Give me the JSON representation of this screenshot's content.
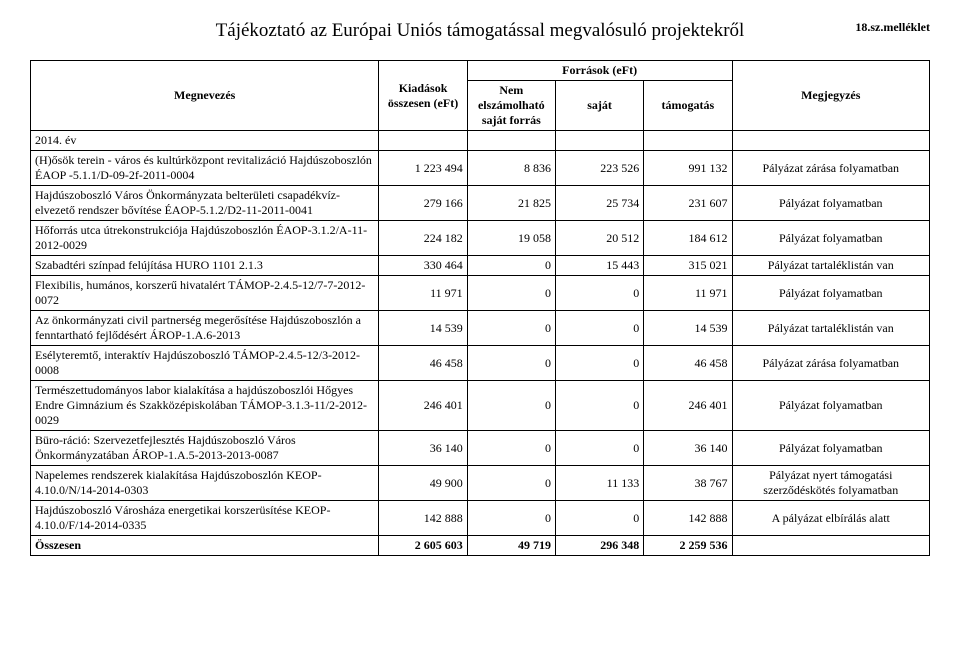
{
  "header": {
    "title": "Tájékoztató az Európai Uniós támogatással megvalósuló projektekről",
    "annex": "18.sz.melléklet"
  },
  "table": {
    "columns": {
      "name": "Megnevezés",
      "kiadasok": "Kiadások összesen (eFt)",
      "forrasok": "Források (eFt)",
      "nem": "Nem elszámolható saját forrás",
      "sajat": "saját",
      "tamogatas": "támogatás",
      "megjegyzes": "Megjegyzés"
    },
    "year": "2014. év",
    "rows": [
      {
        "name": "(H)ősök terein - város és kultúrközpont revitalizáció Hajdúszoboszlón ÉAOP -5.1.1/D-09-2f-2011-0004",
        "c1": "1 223 494",
        "c2": "8 836",
        "c3": "223 526",
        "c4": "991 132",
        "note": "Pályázat zárása folyamatban"
      },
      {
        "name": "Hajdúszoboszló Város Önkormányzata belterületi csapadékvíz-elvezető rendszer bővítése ÉAOP-5.1.2/D2-11-2011-0041",
        "c1": "279 166",
        "c2": "21 825",
        "c3": "25 734",
        "c4": "231 607",
        "note": "Pályázat folyamatban"
      },
      {
        "name": "Hőforrás utca útrekonstrukciója Hajdúszoboszlón ÉAOP-3.1.2/A-11-2012-0029",
        "c1": "224 182",
        "c2": "19 058",
        "c3": "20 512",
        "c4": "184 612",
        "note": "Pályázat folyamatban"
      },
      {
        "name": "Szabadtéri színpad felújítása HURO 1101 2.1.3",
        "c1": "330 464",
        "c2": "0",
        "c3": "15 443",
        "c4": "315 021",
        "note": "Pályázat tartaléklistán van"
      },
      {
        "name": "Flexibilis, humános, korszerű hivatalért TÁMOP-2.4.5-12/7-7-2012-0072",
        "c1": "11 971",
        "c2": "0",
        "c3": "0",
        "c4": "11 971",
        "note": "Pályázat folyamatban"
      },
      {
        "name": "Az önkormányzati civil partnerség megerősítése Hajdúszoboszlón a fenntartható fejlődésért ÁROP-1.A.6-2013",
        "c1": "14 539",
        "c2": "0",
        "c3": "0",
        "c4": "14 539",
        "note": "Pályázat tartaléklistán van"
      },
      {
        "name": "Esélyteremtő, interaktív Hajdúszoboszló TÁMOP-2.4.5-12/3-2012-0008",
        "c1": "46 458",
        "c2": "0",
        "c3": "0",
        "c4": "46 458",
        "note": "Pályázat zárása folyamatban"
      },
      {
        "name": "Természettudományos labor kialakítása a hajdúszoboszlói Hőgyes Endre Gimnázium és Szakközépiskolában TÁMOP-3.1.3-11/2-2012-0029",
        "c1": "246 401",
        "c2": "0",
        "c3": "0",
        "c4": "246 401",
        "note": "Pályázat folyamatban"
      },
      {
        "name": "Büro-ráció: Szervezetfejlesztés Hajdúszoboszló Város Önkormányzatában ÁROP-1.A.5-2013-2013-0087",
        "c1": "36 140",
        "c2": "0",
        "c3": "0",
        "c4": "36 140",
        "note": "Pályázat folyamatban"
      },
      {
        "name": "Napelemes rendszerek kialakítása Hajdúszoboszlón KEOP-4.10.0/N/14-2014-0303",
        "c1": "49 900",
        "c2": "0",
        "c3": "11 133",
        "c4": "38 767",
        "note": "Pályázat nyert támogatási szerződéskötés folyamatban"
      },
      {
        "name": "Hajdúszoboszló Városháza energetikai korszerüsítése KEOP-4.10.0/F/14-2014-0335",
        "c1": "142 888",
        "c2": "0",
        "c3": "0",
        "c4": "142 888",
        "note": "A pályázat elbírálás alatt"
      }
    ],
    "sum": {
      "label": "Összesen",
      "c1": "2 605 603",
      "c2": "49 719",
      "c3": "296 348",
      "c4": "2 259 536"
    }
  }
}
